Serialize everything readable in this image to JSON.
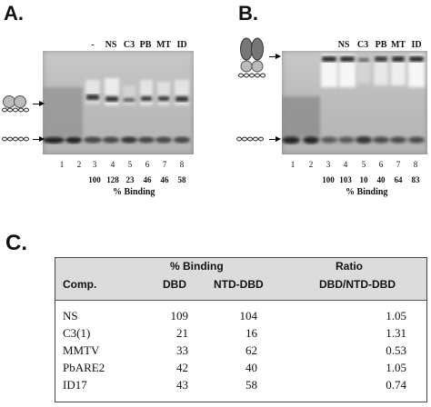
{
  "panel_a": {
    "letter": "A.",
    "lane_labels": [
      "-",
      "NS",
      "C3",
      "PB",
      "MT",
      "ID"
    ],
    "lane_numbers": [
      "1",
      "2",
      "3",
      "4",
      "5",
      "6",
      "7",
      "8"
    ],
    "percent_binding": [
      "100",
      "128",
      "23",
      "46",
      "46",
      "58"
    ],
    "binding_label": "% Binding"
  },
  "panel_b": {
    "letter": "B.",
    "lane_labels": [
      "NS",
      "C3",
      "PB",
      "MT",
      "ID"
    ],
    "lane_numbers": [
      "1",
      "2",
      "3",
      "4",
      "5",
      "6",
      "7",
      "8"
    ],
    "percent_binding": [
      "100",
      "103",
      "10",
      "40",
      "64",
      "83"
    ],
    "binding_label": "% Binding"
  },
  "panel_c": {
    "letter": "C.",
    "header": {
      "comp": "Comp.",
      "binding_group": "% Binding",
      "dbd": "DBD",
      "ntd_dbd": "NTD-DBD",
      "ratio_group": "Ratio",
      "ratio_sub": "DBD/NTD-DBD"
    },
    "rows": [
      {
        "comp": "NS",
        "dbd": "109",
        "ntd_dbd": "104",
        "ratio": "1.05"
      },
      {
        "comp": "C3(1)",
        "dbd": "21",
        "ntd_dbd": "16",
        "ratio": "1.31"
      },
      {
        "comp": "MMTV",
        "dbd": "33",
        "ntd_dbd": "62",
        "ratio": "0.53"
      },
      {
        "comp": "PbARE2",
        "dbd": "42",
        "ntd_dbd": "40",
        "ratio": "1.05"
      },
      {
        "comp": "ID17",
        "dbd": "43",
        "ntd_dbd": "58",
        "ratio": "0.74"
      }
    ]
  }
}
